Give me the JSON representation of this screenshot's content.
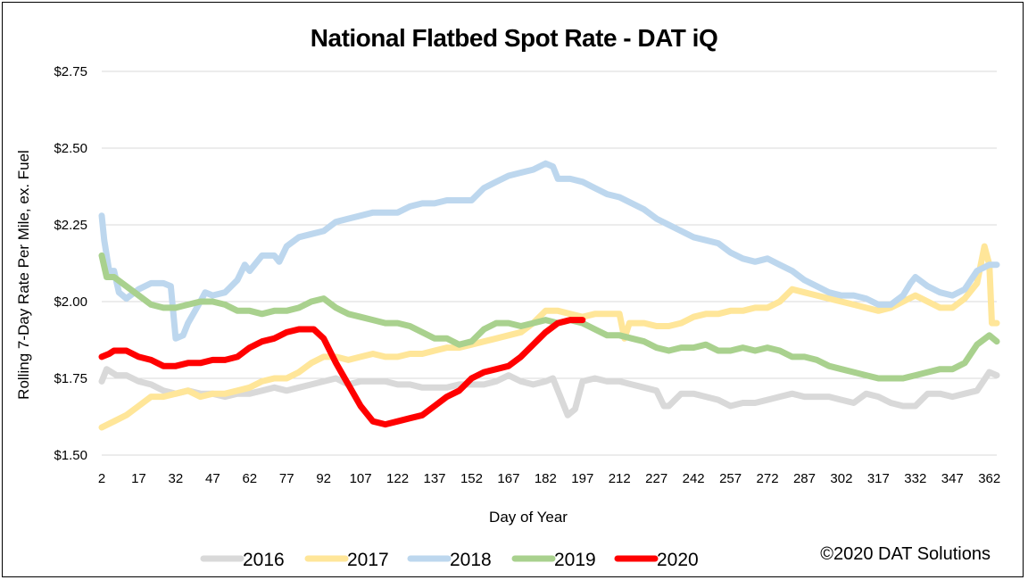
{
  "chart_data": {
    "type": "line",
    "title": "National Flatbed Spot Rate - DAT iQ",
    "xlabel": "Day of Year",
    "ylabel": "Rolling 7-Day Rate Per Mile, ex. Fuel",
    "ylim": [
      1.5,
      2.75
    ],
    "xlim": [
      2,
      365
    ],
    "y_ticks": [
      {
        "value": 1.5,
        "label": "$1.50"
      },
      {
        "value": 1.75,
        "label": "$1.75"
      },
      {
        "value": 2.0,
        "label": "$2.00"
      },
      {
        "value": 2.25,
        "label": "$2.25"
      },
      {
        "value": 2.5,
        "label": "$2.50"
      },
      {
        "value": 2.75,
        "label": "$2.75"
      }
    ],
    "x_ticks": [
      2,
      17,
      32,
      47,
      62,
      77,
      92,
      107,
      122,
      137,
      152,
      167,
      182,
      197,
      212,
      227,
      242,
      257,
      272,
      287,
      302,
      317,
      332,
      347,
      362
    ],
    "grid": "horizontal",
    "legend_position": "bottom",
    "series": [
      {
        "name": "2016",
        "color": "#d9d9d9",
        "x": [
          2,
          4,
          8,
          12,
          17,
          22,
          27,
          32,
          37,
          42,
          47,
          52,
          57,
          62,
          67,
          72,
          77,
          82,
          87,
          92,
          97,
          102,
          107,
          112,
          117,
          122,
          127,
          132,
          137,
          142,
          147,
          152,
          157,
          162,
          167,
          172,
          177,
          182,
          185,
          188,
          191,
          194,
          197,
          202,
          207,
          212,
          217,
          222,
          227,
          230,
          232,
          237,
          242,
          247,
          252,
          257,
          262,
          267,
          272,
          277,
          282,
          287,
          292,
          297,
          302,
          307,
          312,
          317,
          322,
          327,
          332,
          337,
          342,
          347,
          352,
          357,
          362,
          365
        ],
        "values": [
          1.74,
          1.78,
          1.76,
          1.76,
          1.74,
          1.73,
          1.71,
          1.7,
          1.71,
          1.7,
          1.7,
          1.69,
          1.7,
          1.7,
          1.71,
          1.72,
          1.71,
          1.72,
          1.73,
          1.74,
          1.75,
          1.73,
          1.74,
          1.74,
          1.74,
          1.73,
          1.73,
          1.72,
          1.72,
          1.72,
          1.73,
          1.73,
          1.73,
          1.74,
          1.76,
          1.74,
          1.73,
          1.74,
          1.75,
          1.69,
          1.63,
          1.65,
          1.74,
          1.75,
          1.74,
          1.74,
          1.73,
          1.72,
          1.71,
          1.66,
          1.66,
          1.7,
          1.7,
          1.69,
          1.68,
          1.66,
          1.67,
          1.67,
          1.68,
          1.69,
          1.7,
          1.69,
          1.69,
          1.69,
          1.68,
          1.67,
          1.7,
          1.69,
          1.67,
          1.66,
          1.66,
          1.7,
          1.7,
          1.69,
          1.7,
          1.71,
          1.77,
          1.76
        ]
      },
      {
        "name": "2017",
        "color": "#ffe699",
        "x": [
          2,
          7,
          12,
          17,
          22,
          27,
          32,
          37,
          42,
          47,
          52,
          57,
          62,
          67,
          72,
          77,
          82,
          87,
          92,
          97,
          102,
          107,
          112,
          117,
          122,
          127,
          132,
          137,
          142,
          147,
          152,
          157,
          162,
          167,
          172,
          177,
          182,
          187,
          192,
          197,
          202,
          207,
          212,
          214,
          216,
          218,
          222,
          227,
          232,
          237,
          242,
          247,
          252,
          257,
          262,
          267,
          272,
          277,
          282,
          287,
          292,
          297,
          302,
          307,
          312,
          317,
          322,
          327,
          332,
          337,
          342,
          347,
          352,
          357,
          360,
          362,
          363,
          365
        ],
        "values": [
          1.59,
          1.61,
          1.63,
          1.66,
          1.69,
          1.69,
          1.7,
          1.71,
          1.69,
          1.7,
          1.7,
          1.71,
          1.72,
          1.74,
          1.75,
          1.75,
          1.77,
          1.8,
          1.82,
          1.82,
          1.81,
          1.82,
          1.83,
          1.82,
          1.82,
          1.83,
          1.83,
          1.84,
          1.85,
          1.85,
          1.86,
          1.87,
          1.88,
          1.89,
          1.9,
          1.93,
          1.97,
          1.97,
          1.96,
          1.95,
          1.96,
          1.96,
          1.96,
          1.88,
          1.93,
          1.93,
          1.93,
          1.92,
          1.92,
          1.93,
          1.95,
          1.96,
          1.96,
          1.97,
          1.97,
          1.98,
          1.98,
          2.0,
          2.04,
          2.03,
          2.02,
          2.01,
          2.0,
          1.99,
          1.98,
          1.97,
          1.98,
          2.0,
          2.02,
          2.0,
          1.98,
          1.98,
          2.01,
          2.06,
          2.18,
          2.12,
          1.93,
          1.93
        ]
      },
      {
        "name": "2018",
        "color": "#bdd7ee",
        "x": [
          2,
          3,
          5,
          7,
          9,
          12,
          17,
          22,
          27,
          30,
          32,
          35,
          37,
          42,
          44,
          47,
          52,
          57,
          60,
          62,
          67,
          72,
          74,
          77,
          82,
          87,
          92,
          97,
          102,
          107,
          112,
          117,
          122,
          127,
          132,
          137,
          142,
          147,
          152,
          157,
          162,
          167,
          172,
          177,
          182,
          185,
          187,
          192,
          197,
          202,
          207,
          212,
          217,
          222,
          227,
          232,
          237,
          242,
          247,
          252,
          257,
          262,
          267,
          272,
          277,
          282,
          287,
          292,
          297,
          302,
          307,
          312,
          317,
          322,
          327,
          330,
          332,
          337,
          342,
          347,
          352,
          357,
          362,
          365
        ],
        "values": [
          2.28,
          2.2,
          2.1,
          2.1,
          2.03,
          2.01,
          2.04,
          2.06,
          2.06,
          2.05,
          1.88,
          1.89,
          1.93,
          2.0,
          2.03,
          2.02,
          2.03,
          2.07,
          2.12,
          2.1,
          2.15,
          2.15,
          2.13,
          2.18,
          2.21,
          2.22,
          2.23,
          2.26,
          2.27,
          2.28,
          2.29,
          2.29,
          2.29,
          2.31,
          2.32,
          2.32,
          2.33,
          2.33,
          2.33,
          2.37,
          2.39,
          2.41,
          2.42,
          2.43,
          2.45,
          2.44,
          2.4,
          2.4,
          2.39,
          2.37,
          2.35,
          2.34,
          2.32,
          2.3,
          2.27,
          2.25,
          2.23,
          2.21,
          2.2,
          2.19,
          2.16,
          2.14,
          2.13,
          2.14,
          2.12,
          2.1,
          2.07,
          2.05,
          2.03,
          2.02,
          2.02,
          2.01,
          1.99,
          1.99,
          2.02,
          2.06,
          2.08,
          2.05,
          2.03,
          2.02,
          2.04,
          2.1,
          2.12,
          2.12
        ]
      },
      {
        "name": "2019",
        "color": "#a9d18e",
        "x": [
          2,
          4,
          7,
          12,
          17,
          22,
          27,
          32,
          37,
          42,
          47,
          52,
          57,
          62,
          67,
          72,
          77,
          82,
          87,
          92,
          97,
          102,
          107,
          112,
          117,
          122,
          127,
          132,
          137,
          142,
          147,
          152,
          157,
          162,
          167,
          172,
          177,
          182,
          187,
          192,
          197,
          202,
          207,
          212,
          217,
          222,
          227,
          232,
          237,
          242,
          247,
          252,
          257,
          262,
          267,
          272,
          277,
          282,
          287,
          292,
          297,
          302,
          307,
          312,
          317,
          322,
          327,
          332,
          337,
          342,
          347,
          352,
          357,
          362,
          365
        ],
        "values": [
          2.15,
          2.08,
          2.08,
          2.05,
          2.02,
          1.99,
          1.98,
          1.98,
          1.99,
          2.0,
          2.0,
          1.99,
          1.97,
          1.97,
          1.96,
          1.97,
          1.97,
          1.98,
          2.0,
          2.01,
          1.98,
          1.96,
          1.95,
          1.94,
          1.93,
          1.93,
          1.92,
          1.9,
          1.88,
          1.88,
          1.86,
          1.87,
          1.91,
          1.93,
          1.93,
          1.92,
          1.93,
          1.94,
          1.93,
          1.94,
          1.93,
          1.91,
          1.89,
          1.89,
          1.88,
          1.87,
          1.85,
          1.84,
          1.85,
          1.85,
          1.86,
          1.84,
          1.84,
          1.85,
          1.84,
          1.85,
          1.84,
          1.82,
          1.82,
          1.81,
          1.79,
          1.78,
          1.77,
          1.76,
          1.75,
          1.75,
          1.75,
          1.76,
          1.77,
          1.78,
          1.78,
          1.8,
          1.86,
          1.89,
          1.87
        ]
      },
      {
        "name": "2020",
        "color": "#ff0000",
        "x": [
          2,
          5,
          7,
          12,
          17,
          22,
          27,
          32,
          37,
          42,
          47,
          52,
          57,
          62,
          67,
          72,
          77,
          82,
          85,
          88,
          92,
          97,
          102,
          107,
          112,
          117,
          122,
          127,
          132,
          137,
          142,
          147,
          152,
          157,
          162,
          167,
          172,
          177,
          182,
          187,
          192,
          197
        ],
        "values": [
          1.82,
          1.83,
          1.84,
          1.84,
          1.82,
          1.81,
          1.79,
          1.79,
          1.8,
          1.8,
          1.81,
          1.81,
          1.82,
          1.85,
          1.87,
          1.88,
          1.9,
          1.91,
          1.91,
          1.91,
          1.88,
          1.8,
          1.73,
          1.66,
          1.61,
          1.6,
          1.61,
          1.62,
          1.63,
          1.66,
          1.69,
          1.71,
          1.75,
          1.77,
          1.78,
          1.79,
          1.82,
          1.86,
          1.9,
          1.93,
          1.94,
          1.94
        ]
      }
    ],
    "copyright": "©2020 DAT Solutions"
  }
}
